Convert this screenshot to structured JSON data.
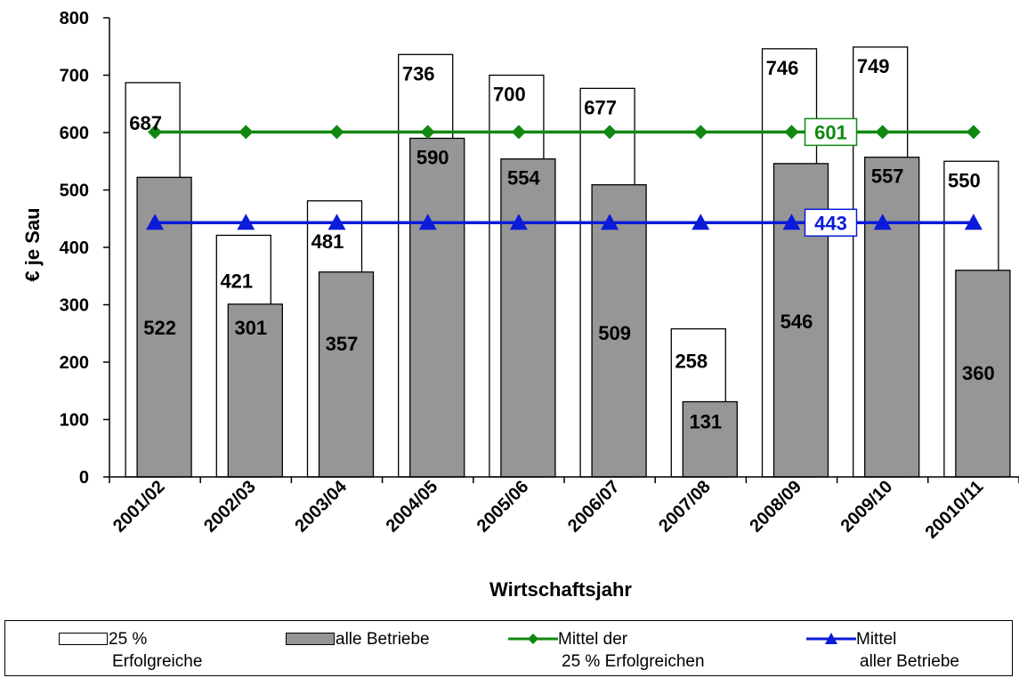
{
  "chart_data": {
    "type": "bar",
    "categories": [
      "2001/02",
      "2002/03",
      "2003/04",
      "2004/05",
      "2005/06",
      "2006/07",
      "2007/08",
      "2008/09",
      "2009/10",
      "20010/11"
    ],
    "series": [
      {
        "name": "25 % Erfolgreiche",
        "type": "bar",
        "color": "#ffffff",
        "values": [
          687,
          421,
          481,
          736,
          700,
          677,
          258,
          746,
          749,
          550
        ]
      },
      {
        "name": "alle Betriebe",
        "type": "bar",
        "color": "#969696",
        "values": [
          522,
          301,
          357,
          590,
          554,
          509,
          131,
          546,
          557,
          360
        ]
      },
      {
        "name": "Mittel der 25 % Erfolgreichen",
        "type": "line",
        "marker": "diamond",
        "color": "#118811",
        "value": 601,
        "label": "601"
      },
      {
        "name": "Mittel aller Betriebe",
        "type": "line",
        "marker": "triangle",
        "color": "#0b1bd8",
        "value": 443,
        "label": "443"
      }
    ],
    "xlabel": "Wirtschaftsjahr",
    "ylabel": "€ je Sau",
    "ylim": [
      0,
      800
    ],
    "yticks": [
      0,
      100,
      200,
      300,
      400,
      500,
      600,
      700,
      800
    ],
    "grid": false,
    "legend": {
      "position": "bottom",
      "items": [
        {
          "line1": "25 %",
          "line2": "Erfolgreiche"
        },
        {
          "line1": "alle Betriebe",
          "line2": ""
        },
        {
          "line1": "Mittel der",
          "line2": "25 % Erfolgreichen"
        },
        {
          "line1": "Mittel",
          "line2": "aller Betriebe"
        }
      ]
    }
  }
}
